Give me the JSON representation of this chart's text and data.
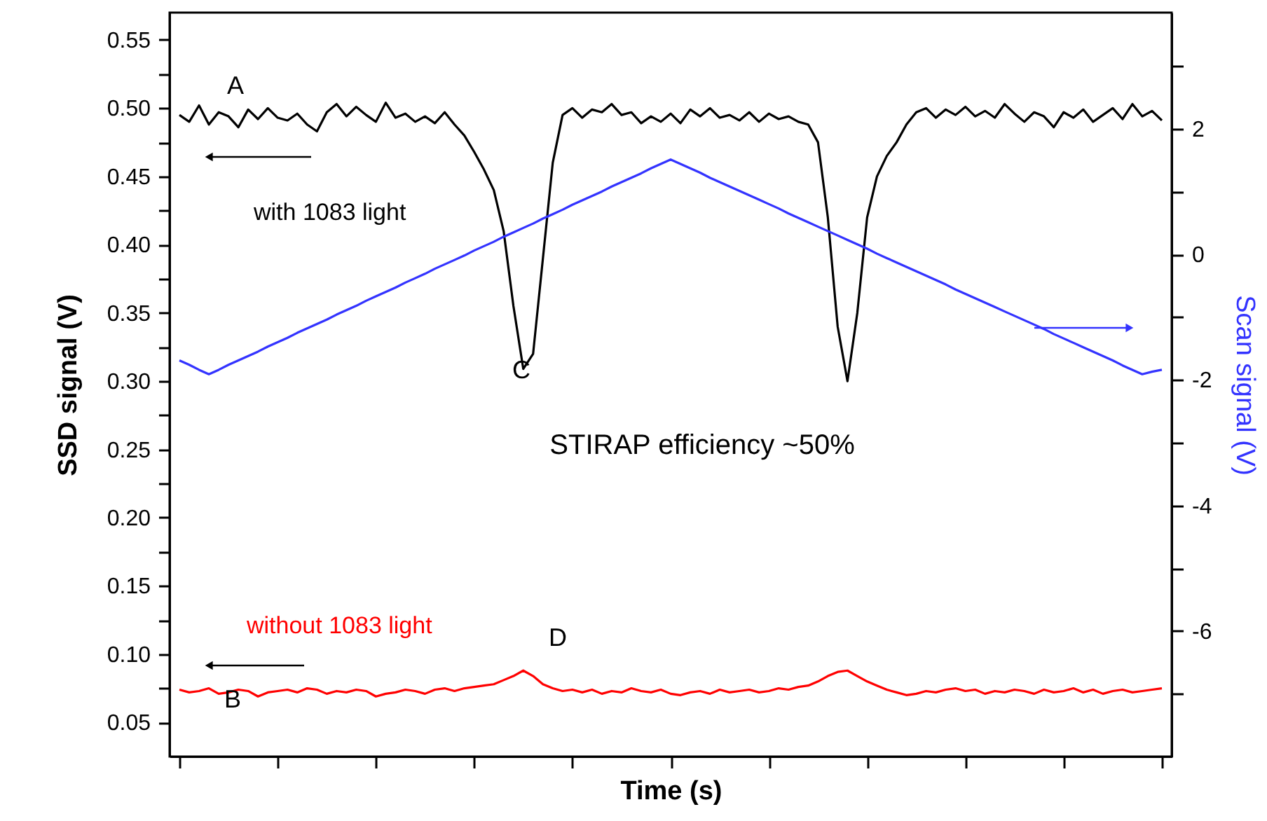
{
  "chart_data": {
    "type": "line",
    "xlabel": "Time (s)",
    "ylabel": "SSD signal (V)",
    "y2label": "Scan signal (V)",
    "categories": [
      null,
      null,
      null,
      null,
      null,
      null,
      null,
      null,
      null,
      null,
      null,
      null,
      null,
      null,
      null,
      null,
      null,
      null,
      null,
      null,
      null,
      null,
      null,
      null,
      null,
      null,
      null,
      null,
      null,
      null,
      null,
      null,
      null,
      null,
      null,
      null,
      null,
      null,
      null,
      null,
      null,
      null,
      null,
      null,
      null,
      null,
      null,
      null,
      null,
      null,
      null,
      null,
      null,
      null,
      null,
      null,
      null,
      null,
      null,
      null,
      null,
      null,
      null,
      null,
      null,
      null,
      null,
      null,
      null,
      null,
      null,
      null,
      null,
      null,
      null,
      null,
      null,
      null,
      null,
      null,
      null,
      null,
      null,
      null,
      null,
      null,
      null,
      null,
      null,
      null,
      null,
      null,
      null,
      null,
      null,
      null,
      null,
      null,
      null,
      null,
      null
    ],
    "tick_labels": "y",
    "ylim": [
      0.025,
      0.57
    ],
    "yticks": [
      {
        "value": 0.05,
        "label": "0.05"
      },
      {
        "value": 0.075,
        "label": null
      },
      {
        "value": 0.1,
        "label": "0.10"
      },
      {
        "value": 0.125,
        "label": null
      },
      {
        "value": 0.15,
        "label": "0.15"
      },
      {
        "value": 0.175,
        "label": null
      },
      {
        "value": 0.2,
        "label": "0.20"
      },
      {
        "value": 0.225,
        "label": null
      },
      {
        "value": 0.25,
        "label": "0.25"
      },
      {
        "value": 0.275,
        "label": null
      },
      {
        "value": 0.3,
        "label": "0.30"
      },
      {
        "value": 0.325,
        "label": null
      },
      {
        "value": 0.35,
        "label": "0.35"
      },
      {
        "value": 0.375,
        "label": null
      },
      {
        "value": 0.4,
        "label": "0.40"
      },
      {
        "value": 0.425,
        "label": null
      },
      {
        "value": 0.45,
        "label": "0.45"
      },
      {
        "value": 0.475,
        "label": null
      },
      {
        "value": 0.5,
        "label": "0.50"
      },
      {
        "value": 0.525,
        "label": null
      },
      {
        "value": 0.55,
        "label": "0.55"
      }
    ],
    "y2lim": [
      -8,
      3.85
    ],
    "y2ticks": [
      -6,
      {
        "value": -7,
        "label": null
      },
      {
        "value": -5,
        "label": null
      },
      -4,
      {
        "value": -3,
        "label": null
      },
      -2,
      {
        "value": -1,
        "label": null
      },
      0,
      {
        "value": 1,
        "label": null
      },
      2,
      {
        "value": 3,
        "label": null
      }
    ],
    "grid": false,
    "marker": "none",
    "line_style": "solid",
    "series": [
      {
        "name": "with 1083 light",
        "color": "#000000",
        "values": [
          0.495,
          0.49,
          0.502,
          0.488,
          0.497,
          0.494,
          0.486,
          0.499,
          0.492,
          0.5,
          0.493,
          0.491,
          0.496,
          0.488,
          0.483,
          0.497,
          0.503,
          0.494,
          0.501,
          0.495,
          0.49,
          0.504,
          0.493,
          0.496,
          0.49,
          0.494,
          0.489,
          0.497,
          0.488,
          0.48,
          0.468,
          0.455,
          0.44,
          0.41,
          0.355,
          0.309,
          0.32,
          0.39,
          0.46,
          0.495,
          0.5,
          0.493,
          0.499,
          0.497,
          0.503,
          0.495,
          0.497,
          0.489,
          0.494,
          0.49,
          0.496,
          0.489,
          0.499,
          0.494,
          0.5,
          0.493,
          0.495,
          0.491,
          0.497,
          0.49,
          0.496,
          0.492,
          0.494,
          0.49,
          0.488,
          0.475,
          0.42,
          0.34,
          0.3,
          0.35,
          0.42,
          0.45,
          0.465,
          0.475,
          0.488,
          0.497,
          0.5,
          0.493,
          0.499,
          0.495,
          0.501,
          0.494,
          0.498,
          0.493,
          0.503,
          0.496,
          0.49,
          0.497,
          0.494,
          0.486,
          0.497,
          0.493,
          0.499,
          0.49,
          0.495,
          0.5,
          0.492,
          0.503,
          0.494,
          0.498,
          0.491
        ]
      },
      {
        "name": "without 1083 light",
        "color": "#ff0000",
        "values": [
          0.074,
          0.072,
          0.073,
          0.075,
          0.071,
          0.072,
          0.074,
          0.073,
          0.069,
          0.072,
          0.073,
          0.074,
          0.072,
          0.075,
          0.074,
          0.071,
          0.073,
          0.072,
          0.074,
          0.073,
          0.069,
          0.071,
          0.072,
          0.074,
          0.073,
          0.071,
          0.074,
          0.075,
          0.073,
          0.075,
          0.076,
          0.077,
          0.078,
          0.081,
          0.084,
          0.088,
          0.084,
          0.078,
          0.075,
          0.073,
          0.074,
          0.072,
          0.074,
          0.071,
          0.073,
          0.072,
          0.075,
          0.073,
          0.072,
          0.074,
          0.071,
          0.07,
          0.072,
          0.073,
          0.071,
          0.074,
          0.072,
          0.073,
          0.074,
          0.072,
          0.073,
          0.075,
          0.074,
          0.076,
          0.077,
          0.08,
          0.084,
          0.087,
          0.088,
          0.084,
          0.08,
          0.077,
          0.074,
          0.072,
          0.07,
          0.071,
          0.073,
          0.072,
          0.074,
          0.075,
          0.073,
          0.074,
          0.071,
          0.073,
          0.072,
          0.074,
          0.073,
          0.071,
          0.074,
          0.072,
          0.073,
          0.075,
          0.072,
          0.074,
          0.071,
          0.073,
          0.074,
          0.072,
          0.073,
          0.074,
          0.075
        ]
      },
      {
        "color": "#3333ff",
        "axis": "y2",
        "values": [
          -1.69,
          -1.76,
          -1.84,
          -1.91,
          -1.84,
          -1.76,
          -1.69,
          -1.62,
          -1.55,
          -1.47,
          -1.4,
          -1.33,
          -1.25,
          -1.18,
          -1.11,
          -1.04,
          -0.96,
          -0.89,
          -0.82,
          -0.74,
          -0.67,
          -0.6,
          -0.53,
          -0.45,
          -0.38,
          -0.31,
          -0.23,
          -0.16,
          -0.09,
          -0.02,
          0.06,
          0.13,
          0.2,
          0.28,
          0.35,
          0.42,
          0.49,
          0.57,
          0.64,
          0.71,
          0.79,
          0.86,
          0.93,
          1.0,
          1.08,
          1.15,
          1.22,
          1.29,
          1.37,
          1.44,
          1.51,
          1.44,
          1.37,
          1.3,
          1.22,
          1.15,
          1.08,
          1.01,
          0.94,
          0.87,
          0.8,
          0.73,
          0.65,
          0.58,
          0.51,
          0.44,
          0.37,
          0.3,
          0.23,
          0.16,
          0.09,
          0.01,
          -0.06,
          -0.13,
          -0.2,
          -0.27,
          -0.34,
          -0.41,
          -0.48,
          -0.56,
          -0.63,
          -0.7,
          -0.77,
          -0.84,
          -0.91,
          -0.98,
          -1.05,
          -1.12,
          -1.19,
          -1.27,
          -1.34,
          -1.41,
          -1.48,
          -1.55,
          -1.62,
          -1.69,
          -1.77,
          -1.84,
          -1.91,
          -1.87,
          -1.84
        ]
      }
    ],
    "annotations": [
      "A",
      "B",
      "C",
      "D",
      "STIRAP efficiency ~50%"
    ]
  }
}
